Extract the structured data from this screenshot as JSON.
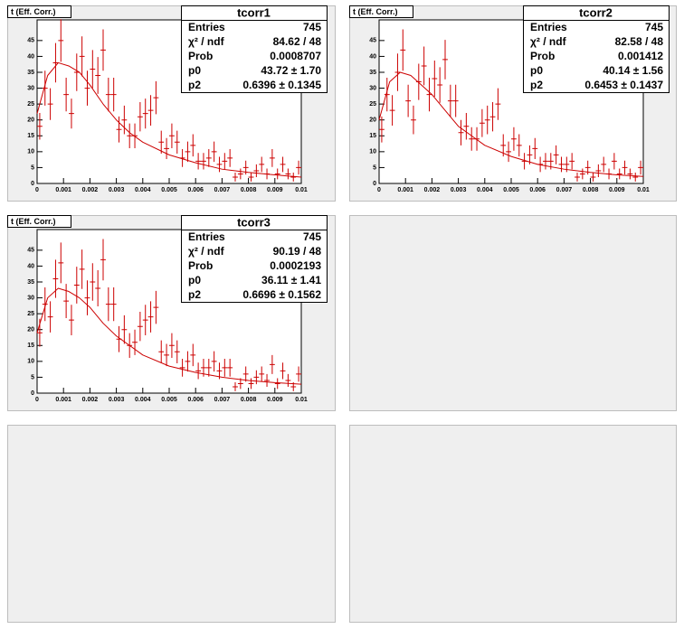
{
  "chart_data": [
    {
      "type": "histogram",
      "title": "t (Eff. Corr.)",
      "color": "#cc0000",
      "bins": [
        0,
        0.0002,
        0.0004,
        0.0006,
        0.0008,
        0.001,
        0.0012,
        0.0014,
        0.0016,
        0.0018,
        0.002,
        0.0022,
        0.0024,
        0.0026,
        0.0028,
        0.003,
        0.0032,
        0.0034,
        0.0036,
        0.0038,
        0.004,
        0.0042,
        0.0044,
        0.0046,
        0.0048,
        0.005,
        0.0052,
        0.0054,
        0.0056,
        0.0058,
        0.006,
        0.0062,
        0.0064,
        0.0066,
        0.0068,
        0.007,
        0.0072,
        0.0074,
        0.0076,
        0.0078,
        0.008,
        0.0082,
        0.0084,
        0.0086,
        0.0088,
        0.009,
        0.0092,
        0.0094,
        0.0096,
        0.0098,
        0.01
      ],
      "values": [
        18,
        30,
        25,
        38,
        45,
        28,
        22,
        35,
        40,
        30,
        36,
        34,
        42,
        28,
        28,
        17,
        20,
        15,
        15,
        21,
        22,
        23,
        27,
        13,
        11,
        15,
        13,
        8,
        10,
        12,
        7,
        7,
        8,
        10,
        6,
        7,
        8,
        2,
        3,
        5,
        2,
        4,
        6,
        3,
        8,
        3,
        6,
        3,
        2,
        5
      ],
      "errors": [
        4.2,
        5.5,
        5,
        6.2,
        6.7,
        5.3,
        4.7,
        5.9,
        6.3,
        5.5,
        6,
        5.8,
        6.5,
        5.3,
        5.3,
        4.1,
        4.5,
        3.9,
        3.9,
        4.6,
        4.7,
        4.8,
        5.2,
        3.6,
        3.3,
        3.9,
        3.6,
        2.8,
        3.2,
        3.5,
        2.6,
        2.6,
        2.8,
        3.2,
        2.4,
        2.6,
        2.8,
        1.4,
        1.7,
        2.2,
        1.4,
        2,
        2.4,
        1.7,
        2.8,
        1.7,
        2.4,
        1.7,
        1.4,
        2.2
      ],
      "fit": {
        "x": [
          0,
          0.0004,
          0.0008,
          0.0012,
          0.0016,
          0.002,
          0.0025,
          0.003,
          0.0035,
          0.004,
          0.005,
          0.006,
          0.007,
          0.008,
          0.009,
          0.01
        ],
        "values": [
          22,
          34,
          38,
          37,
          35,
          31,
          25,
          20,
          16,
          13,
          9,
          6.5,
          4.5,
          3.5,
          2.7,
          2
        ]
      },
      "xlim": [
        0,
        0.01
      ],
      "xticks": [
        0,
        0.001,
        0.002,
        0.003,
        0.004,
        0.005,
        0.006,
        0.007,
        0.008,
        0.009,
        0.01
      ],
      "ylim": [
        0,
        51.5
      ],
      "yticks": [
        0,
        5,
        10,
        15,
        20,
        25,
        30,
        35,
        40,
        45
      ],
      "stats": {
        "title": "tcorr1",
        "rows": [
          [
            "Entries",
            "745"
          ],
          [
            "χ² / ndf",
            "84.62 / 48"
          ],
          [
            "Prob",
            "0.0008707"
          ],
          [
            "p0",
            "43.72 ± 1.70"
          ],
          [
            "p2",
            "0.6396 ± 0.1345"
          ]
        ]
      }
    },
    {
      "type": "histogram",
      "title": "t (Eff. Corr.)",
      "color": "#cc0000",
      "bins": [
        0,
        0.0002,
        0.0004,
        0.0006,
        0.0008,
        0.001,
        0.0012,
        0.0014,
        0.0016,
        0.0018,
        0.002,
        0.0022,
        0.0024,
        0.0026,
        0.0028,
        0.003,
        0.0032,
        0.0034,
        0.0036,
        0.0038,
        0.004,
        0.0042,
        0.0044,
        0.0046,
        0.0048,
        0.005,
        0.0052,
        0.0054,
        0.0056,
        0.0058,
        0.006,
        0.0062,
        0.0064,
        0.0066,
        0.0068,
        0.007,
        0.0072,
        0.0074,
        0.0076,
        0.0078,
        0.008,
        0.0082,
        0.0084,
        0.0086,
        0.0088,
        0.009,
        0.0092,
        0.0094,
        0.0096,
        0.0098,
        0.01
      ],
      "values": [
        17,
        28,
        23,
        35,
        42,
        26,
        20,
        32,
        37,
        28,
        33,
        31,
        39,
        26,
        26,
        16,
        18,
        14,
        14,
        19,
        20,
        21,
        25,
        12,
        10,
        14,
        12,
        7,
        9,
        11,
        6,
        7,
        7,
        9,
        6,
        6,
        7,
        2,
        3,
        5,
        2,
        4,
        6,
        3,
        7,
        3,
        5,
        3,
        2,
        5
      ],
      "errors": [
        4.1,
        5.3,
        4.8,
        5.9,
        6.5,
        5.1,
        4.5,
        5.7,
        6.1,
        5.3,
        5.7,
        5.6,
        6.2,
        5.1,
        5.1,
        4,
        4.2,
        3.7,
        3.7,
        4.4,
        4.5,
        4.6,
        5,
        3.5,
        3.2,
        3.7,
        3.5,
        2.6,
        3,
        3.3,
        2.4,
        2.6,
        2.6,
        3,
        2.4,
        2.4,
        2.6,
        1.4,
        1.7,
        2.2,
        1.4,
        2,
        2.4,
        1.7,
        2.6,
        1.7,
        2.2,
        1.7,
        1.4,
        2.2
      ],
      "fit": {
        "x": [
          0,
          0.0004,
          0.0008,
          0.0012,
          0.0016,
          0.002,
          0.0025,
          0.003,
          0.0035,
          0.004,
          0.005,
          0.006,
          0.007,
          0.008,
          0.009,
          0.01
        ],
        "values": [
          20,
          32,
          35,
          34,
          31,
          28,
          23,
          18,
          15,
          12,
          8.5,
          6,
          4.5,
          3.5,
          2.7,
          2.2
        ]
      },
      "xlim": [
        0,
        0.01
      ],
      "xticks": [
        0,
        0.001,
        0.002,
        0.003,
        0.004,
        0.005,
        0.006,
        0.007,
        0.008,
        0.009,
        0.01
      ],
      "ylim": [
        0,
        51.5
      ],
      "yticks": [
        0,
        5,
        10,
        15,
        20,
        25,
        30,
        35,
        40,
        45
      ],
      "stats": {
        "title": "tcorr2",
        "rows": [
          [
            "Entries",
            "745"
          ],
          [
            "χ² / ndf",
            "82.58 / 48"
          ],
          [
            "Prob",
            "0.001412"
          ],
          [
            "p0",
            "40.14 ± 1.56"
          ],
          [
            "p2",
            "0.6453 ± 0.1437"
          ]
        ]
      }
    },
    {
      "type": "histogram",
      "title": "t (Eff. Corr.)",
      "color": "#cc0000",
      "bins": [
        0,
        0.0002,
        0.0004,
        0.0006,
        0.0008,
        0.001,
        0.0012,
        0.0014,
        0.0016,
        0.0018,
        0.002,
        0.0022,
        0.0024,
        0.0026,
        0.0028,
        0.003,
        0.0032,
        0.0034,
        0.0036,
        0.0038,
        0.004,
        0.0042,
        0.0044,
        0.0046,
        0.0048,
        0.005,
        0.0052,
        0.0054,
        0.0056,
        0.0058,
        0.006,
        0.0062,
        0.0064,
        0.0066,
        0.0068,
        0.007,
        0.0072,
        0.0074,
        0.0076,
        0.0078,
        0.008,
        0.0082,
        0.0084,
        0.0086,
        0.0088,
        0.009,
        0.0092,
        0.0094,
        0.0096,
        0.0098,
        0.01
      ],
      "values": [
        19,
        28,
        24,
        36,
        41,
        29,
        23,
        34,
        39,
        30,
        35,
        33,
        42,
        28,
        28,
        17,
        20,
        15,
        16,
        21,
        23,
        24,
        27,
        13,
        12,
        15,
        13,
        8,
        10,
        12,
        7,
        8,
        8,
        10,
        7,
        8,
        8,
        2,
        3,
        6,
        3,
        5,
        6,
        4,
        9,
        3,
        7,
        4,
        2,
        6
      ],
      "errors": [
        4.4,
        5.3,
        4.9,
        6,
        6.4,
        5.4,
        4.8,
        5.8,
        6.2,
        5.5,
        5.9,
        5.7,
        6.5,
        5.3,
        5.3,
        4.1,
        4.5,
        3.9,
        4,
        4.6,
        4.8,
        4.9,
        5.2,
        3.6,
        3.5,
        3.9,
        3.6,
        2.8,
        3.2,
        3.5,
        2.6,
        2.8,
        2.8,
        3.2,
        2.6,
        2.8,
        2.8,
        1.4,
        1.7,
        2.4,
        1.7,
        2.2,
        2.4,
        2,
        3,
        1.7,
        2.6,
        2,
        1.4,
        2.4
      ],
      "fit": {
        "x": [
          0,
          0.0004,
          0.0008,
          0.0012,
          0.0016,
          0.002,
          0.0025,
          0.003,
          0.0035,
          0.004,
          0.005,
          0.006,
          0.007,
          0.008,
          0.009,
          0.01
        ],
        "values": [
          19,
          30,
          33,
          32,
          30,
          27,
          22,
          18,
          15,
          12,
          8.5,
          6.5,
          5,
          4,
          3.3,
          2.8
        ]
      },
      "xlim": [
        0,
        0.01
      ],
      "xticks": [
        0,
        0.001,
        0.002,
        0.003,
        0.004,
        0.005,
        0.006,
        0.007,
        0.008,
        0.009,
        0.01
      ],
      "ylim": [
        0,
        51.5
      ],
      "yticks": [
        0,
        5,
        10,
        15,
        20,
        25,
        30,
        35,
        40,
        45
      ],
      "stats": {
        "title": "tcorr3",
        "rows": [
          [
            "Entries",
            "745"
          ],
          [
            "χ² / ndf",
            "90.19 / 48"
          ],
          [
            "Prob",
            "0.0002193"
          ],
          [
            "p0",
            "36.11 ± 1.41"
          ],
          [
            "p2",
            "0.6696 ± 0.1562"
          ]
        ]
      }
    }
  ]
}
